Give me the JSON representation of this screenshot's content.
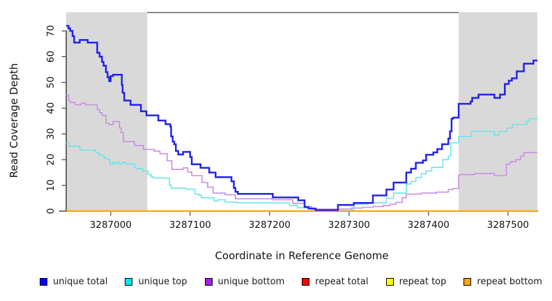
{
  "chart_data": {
    "type": "line",
    "step": true,
    "title": "",
    "xlabel": "Coordinate in Reference Genome",
    "ylabel": "Read Coverage Depth",
    "xlim": [
      3286944,
      3287537
    ],
    "ylim": [
      0,
      72
    ],
    "x_ticks": [
      3287000,
      3287100,
      3287200,
      3287300,
      3287400,
      3287500
    ],
    "y_ticks": [
      0,
      10,
      20,
      30,
      40,
      50,
      60,
      70
    ],
    "grid": false,
    "legend_position": "bottom",
    "colors": {
      "shaded_region": "#d9d9d9",
      "plot_box_top": "#8a8a8a",
      "axis": "#111111"
    },
    "shaded_regions": [
      {
        "x0": 3286944,
        "x1": 3287046,
        "color": "#d9d9d9"
      },
      {
        "x0": 3287438,
        "x1": 3287537,
        "color": "#d9d9d9"
      }
    ],
    "series": [
      {
        "name": "unique total",
        "color": "#0000ff",
        "line_color": "#2424e8",
        "line_width": 2.5,
        "points": [
          [
            3286944,
            72
          ],
          [
            3286947,
            71
          ],
          [
            3286949,
            70
          ],
          [
            3286952,
            68
          ],
          [
            3286954,
            65.5
          ],
          [
            3286961,
            66.5
          ],
          [
            3286971,
            65.5
          ],
          [
            3286983,
            61.5
          ],
          [
            3286986,
            60
          ],
          [
            3286989,
            58
          ],
          [
            3286991,
            56.5
          ],
          [
            3286994,
            54
          ],
          [
            3286996,
            52
          ],
          [
            3286998,
            50.5
          ],
          [
            3287000,
            52.5
          ],
          [
            3287003,
            53
          ],
          [
            3287014,
            49
          ],
          [
            3287015,
            46
          ],
          [
            3287017,
            43
          ],
          [
            3287025,
            41.3
          ],
          [
            3287038,
            38.8
          ],
          [
            3287045,
            37.2
          ],
          [
            3287060,
            35.2
          ],
          [
            3287069,
            33.8
          ],
          [
            3287075,
            32.9
          ],
          [
            3287076,
            29
          ],
          [
            3287078,
            27
          ],
          [
            3287080,
            26
          ],
          [
            3287082,
            23.4
          ],
          [
            3287085,
            22
          ],
          [
            3287091,
            23
          ],
          [
            3287100,
            21
          ],
          [
            3287102,
            18.2
          ],
          [
            3287113,
            16.8
          ],
          [
            3287124,
            15
          ],
          [
            3287132,
            13.2
          ],
          [
            3287152,
            11.6
          ],
          [
            3287155,
            9
          ],
          [
            3287157,
            7.5
          ],
          [
            3287160,
            6.7
          ],
          [
            3287204,
            5.3
          ],
          [
            3287236,
            4.2
          ],
          [
            3287244,
            1.6
          ],
          [
            3287249,
            1
          ],
          [
            3287258,
            0.4
          ],
          [
            3287286,
            2.4
          ],
          [
            3287306,
            3.2
          ],
          [
            3287330,
            6.1
          ],
          [
            3287347,
            8.4
          ],
          [
            3287356,
            11.1
          ],
          [
            3287372,
            15
          ],
          [
            3287378,
            16.5
          ],
          [
            3287384,
            18.8
          ],
          [
            3287393,
            19.7
          ],
          [
            3287397,
            21.9
          ],
          [
            3287406,
            22.8
          ],
          [
            3287411,
            24.1
          ],
          [
            3287417,
            26
          ],
          [
            3287425,
            28.2
          ],
          [
            3287427,
            31
          ],
          [
            3287429,
            35.9
          ],
          [
            3287431,
            36.3
          ],
          [
            3287438,
            41.7
          ],
          [
            3287453,
            42.6
          ],
          [
            3287455,
            44
          ],
          [
            3287463,
            45.3
          ],
          [
            3287483,
            44
          ],
          [
            3287490,
            45.3
          ],
          [
            3287496,
            49.4
          ],
          [
            3287501,
            50.7
          ],
          [
            3287505,
            51.6
          ],
          [
            3287511,
            54.3
          ],
          [
            3287520,
            57.3
          ],
          [
            3287532,
            58.5
          ]
        ]
      },
      {
        "name": "unique top",
        "color": "#00e5ee",
        "line_color": "#6de4ea",
        "line_width": 1.6,
        "points": [
          [
            3286944,
            26.5
          ],
          [
            3286948,
            25.2
          ],
          [
            3286961,
            24
          ],
          [
            3286963,
            23.7
          ],
          [
            3286981,
            22.8
          ],
          [
            3286985,
            21.9
          ],
          [
            3286989,
            21.4
          ],
          [
            3286992,
            20.5
          ],
          [
            3286996,
            20.1
          ],
          [
            3286999,
            18.3
          ],
          [
            3287002,
            19
          ],
          [
            3287004,
            18.3
          ],
          [
            3287007,
            19
          ],
          [
            3287011,
            18.3
          ],
          [
            3287014,
            19
          ],
          [
            3287018,
            18.3
          ],
          [
            3287030,
            17
          ],
          [
            3287032,
            16.5
          ],
          [
            3287040,
            15.6
          ],
          [
            3287047,
            14.2
          ],
          [
            3287051,
            13.3
          ],
          [
            3287054,
            12.9
          ],
          [
            3287074,
            10.2
          ],
          [
            3287076,
            8.9
          ],
          [
            3287095,
            8.5
          ],
          [
            3287106,
            6.6
          ],
          [
            3287111,
            6.2
          ],
          [
            3287114,
            5.2
          ],
          [
            3287130,
            3.9
          ],
          [
            3287135,
            4.4
          ],
          [
            3287144,
            3.5
          ],
          [
            3287159,
            3.2
          ],
          [
            3287225,
            2.2
          ],
          [
            3287235,
            1.3
          ],
          [
            3287253,
            0.6
          ],
          [
            3287306,
            2.7
          ],
          [
            3287324,
            3.2
          ],
          [
            3287347,
            5
          ],
          [
            3287356,
            7
          ],
          [
            3287372,
            10.5
          ],
          [
            3287378,
            11.5
          ],
          [
            3287384,
            13
          ],
          [
            3287391,
            14.5
          ],
          [
            3287397,
            15.6
          ],
          [
            3287404,
            17
          ],
          [
            3287418,
            20
          ],
          [
            3287425,
            21.4
          ],
          [
            3287428,
            26.5
          ],
          [
            3287438,
            29
          ],
          [
            3287454,
            31
          ],
          [
            3287483,
            29.6
          ],
          [
            3287489,
            31
          ],
          [
            3287499,
            32.3
          ],
          [
            3287506,
            33.7
          ],
          [
            3287524,
            35
          ],
          [
            3287527,
            35.9
          ]
        ]
      },
      {
        "name": "unique bottom",
        "color": "#a020f0",
        "line_color": "#c98fe3",
        "line_width": 1.6,
        "points": [
          [
            3286944,
            45
          ],
          [
            3286947,
            43
          ],
          [
            3286949,
            42.2
          ],
          [
            3286955,
            41.3
          ],
          [
            3286963,
            42
          ],
          [
            3286968,
            41.3
          ],
          [
            3286983,
            39.5
          ],
          [
            3286986,
            38.2
          ],
          [
            3286989,
            37.2
          ],
          [
            3286994,
            34.1
          ],
          [
            3286998,
            33.6
          ],
          [
            3287003,
            34.8
          ],
          [
            3287011,
            32.3
          ],
          [
            3287013,
            30.5
          ],
          [
            3287016,
            27
          ],
          [
            3287030,
            25.5
          ],
          [
            3287041,
            24
          ],
          [
            3287055,
            23.3
          ],
          [
            3287062,
            22.3
          ],
          [
            3287071,
            19.6
          ],
          [
            3287077,
            16.2
          ],
          [
            3287091,
            16.8
          ],
          [
            3287097,
            15.2
          ],
          [
            3287102,
            13.8
          ],
          [
            3287115,
            11.1
          ],
          [
            3287122,
            9.3
          ],
          [
            3287129,
            7
          ],
          [
            3287144,
            6.4
          ],
          [
            3287156,
            6
          ],
          [
            3287157,
            4.8
          ],
          [
            3287203,
            4.4
          ],
          [
            3287229,
            3
          ],
          [
            3287244,
            1.8
          ],
          [
            3287253,
            0.8
          ],
          [
            3287303,
            1.2
          ],
          [
            3287317,
            1.5
          ],
          [
            3287330,
            1.8
          ],
          [
            3287343,
            2.2
          ],
          [
            3287352,
            2.7
          ],
          [
            3287359,
            3.4
          ],
          [
            3287367,
            5.2
          ],
          [
            3287372,
            6.6
          ],
          [
            3287391,
            7
          ],
          [
            3287410,
            7.4
          ],
          [
            3287425,
            8.4
          ],
          [
            3287431,
            8.8
          ],
          [
            3287438,
            13.8
          ],
          [
            3287439,
            14.2
          ],
          [
            3287458,
            14.6
          ],
          [
            3287483,
            13.8
          ],
          [
            3287498,
            18.3
          ],
          [
            3287503,
            19.2
          ],
          [
            3287510,
            20
          ],
          [
            3287516,
            21.4
          ],
          [
            3287520,
            22.8
          ]
        ]
      },
      {
        "name": "repeat total",
        "color": "#ff0000",
        "line_color": "#ff0000",
        "line_width": 1.4,
        "points": [
          [
            3286944,
            0
          ]
        ]
      },
      {
        "name": "repeat top",
        "color": "#ffff00",
        "line_color": "#ffff00",
        "line_width": 1.4,
        "points": [
          [
            3286944,
            0
          ]
        ]
      },
      {
        "name": "repeat bottom",
        "color": "#ffa500",
        "line_color": "#ffa500",
        "line_width": 2.2,
        "points": [
          [
            3286944,
            0
          ]
        ]
      }
    ]
  }
}
